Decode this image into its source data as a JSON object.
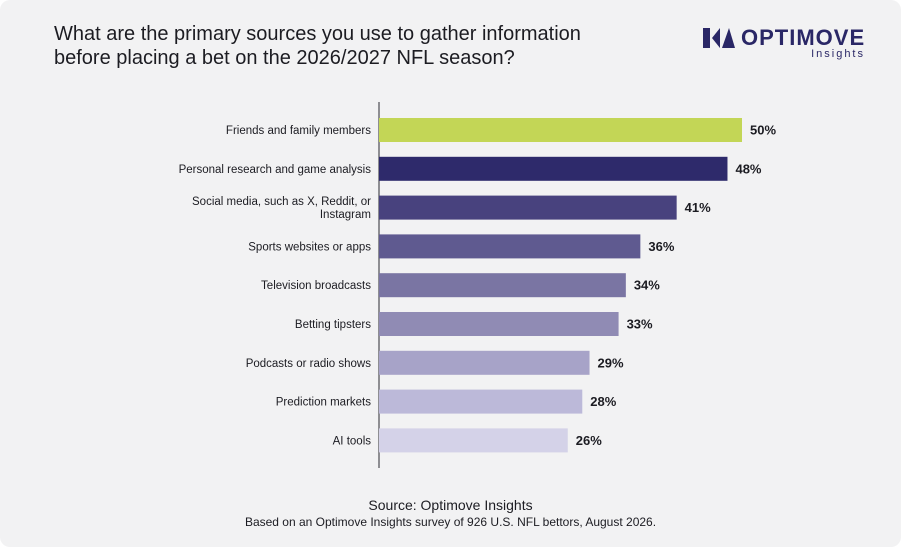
{
  "title": "What are the primary sources you use to gather information before placing a bet on the 2026/2027 NFL season?",
  "logo": {
    "name": "OPTIMOVE",
    "sub": "Insights",
    "color": "#2a2766"
  },
  "footer": {
    "source": "Source: Optimove Insights",
    "note": "Based on an Optimove Insights survey of 926 U.S. NFL bettors, August 2026."
  },
  "chart_data": {
    "type": "bar",
    "orientation": "horizontal",
    "categories": [
      "Friends and family members",
      "Personal research and game analysis",
      "Social media, such as X, Reddit, or Instagram",
      "Sports websites or apps",
      "Television broadcasts",
      "Betting tipsters",
      "Podcasts or radio shows",
      "Prediction markets",
      "AI tools"
    ],
    "values": [
      50,
      48,
      41,
      36,
      34,
      33,
      29,
      28,
      26
    ],
    "value_labels": [
      "50%",
      "48%",
      "41%",
      "36%",
      "34%",
      "33%",
      "29%",
      "28%",
      "26%"
    ],
    "unit": "%",
    "colors": [
      "#c3d656",
      "#2e2a6b",
      "#48427e",
      "#5f5a90",
      "#7a75a3",
      "#908bb4",
      "#a7a3c8",
      "#bcb9d9",
      "#d4d2e8"
    ],
    "xlim": [
      0,
      50
    ],
    "grid": false,
    "legend": "none"
  }
}
